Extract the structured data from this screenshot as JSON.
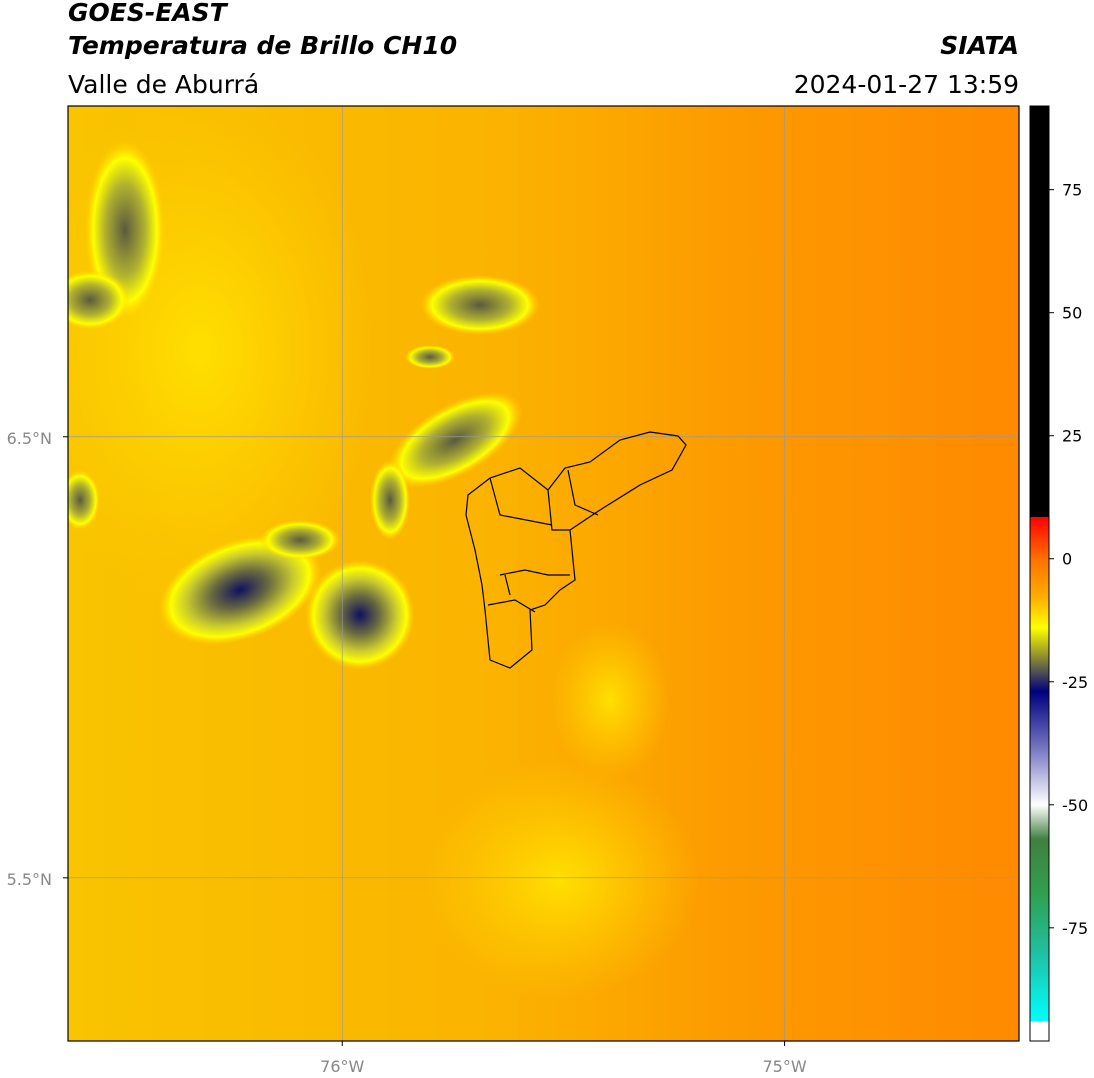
{
  "chart_data": {
    "type": "map",
    "title": "GOES-EAST",
    "subtitle": "Temperatura de Brillo CH10",
    "source": "SIATA",
    "region": "Valle de Aburrá",
    "datetime": "2024-01-27 13:59",
    "xlim": [
      -76.62,
      -74.47
    ],
    "ylim": [
      5.13,
      7.25
    ],
    "xticks": [
      {
        "value": -76,
        "label": "76°W"
      },
      {
        "value": -75,
        "label": "75°W"
      }
    ],
    "yticks": [
      {
        "value": 6.5,
        "label": "6.5°N"
      },
      {
        "value": 5.5,
        "label": "5.5°N"
      }
    ],
    "grid": true,
    "colorbar": {
      "lim": [
        -98,
        92
      ],
      "ticks": [
        75,
        50,
        25,
        0,
        -25,
        -50,
        -75
      ],
      "stops": [
        {
          "value": 92,
          "color": "#000000"
        },
        {
          "value": 8.5,
          "color": "#000000"
        },
        {
          "value": 8.5,
          "color": "#ff0000"
        },
        {
          "value": 0,
          "color": "#ff7000"
        },
        {
          "value": -8,
          "color": "#ffb000"
        },
        {
          "value": -14,
          "color": "#ffff00"
        },
        {
          "value": -20,
          "color": "#8c8c30"
        },
        {
          "value": -27,
          "color": "#000080"
        },
        {
          "value": -38,
          "color": "#7070c0"
        },
        {
          "value": -50,
          "color": "#ffffff"
        },
        {
          "value": -57,
          "color": "#408040"
        },
        {
          "value": -68,
          "color": "#30a050"
        },
        {
          "value": -80,
          "color": "#20c0a0"
        },
        {
          "value": -94,
          "color": "#00ffff"
        },
        {
          "value": -94,
          "color": "#ffffff"
        },
        {
          "value": -98,
          "color": "#ffffff"
        }
      ]
    }
  }
}
